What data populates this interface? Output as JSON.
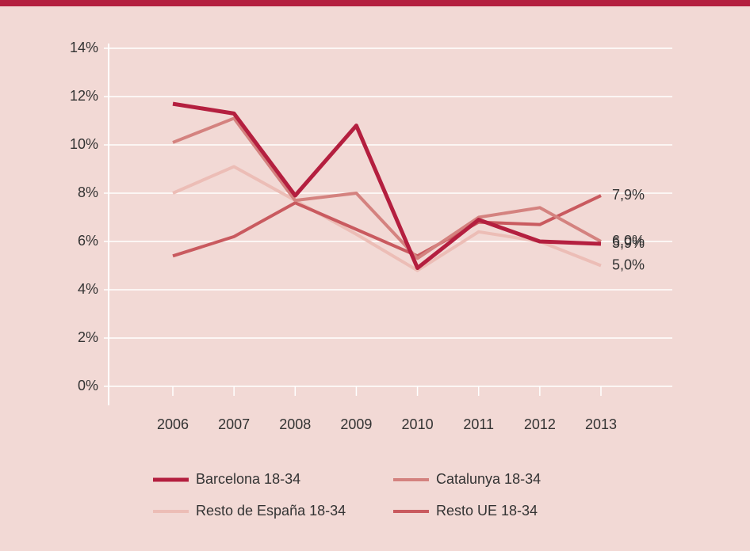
{
  "chart_data": {
    "type": "line",
    "categories": [
      "2006",
      "2007",
      "2008",
      "2009",
      "2010",
      "2011",
      "2012",
      "2013"
    ],
    "series": [
      {
        "name": "Resto de España 18-34",
        "color": "#ecbdb6",
        "values": [
          8.0,
          9.1,
          7.7,
          6.3,
          4.8,
          6.4,
          6.0,
          5.0
        ],
        "value_labels": [
          null,
          null,
          null,
          null,
          null,
          null,
          null,
          "5,0%"
        ]
      },
      {
        "name": "Resto UE 18-34",
        "color": "#c95a5f",
        "values": [
          5.4,
          6.2,
          7.6,
          6.5,
          5.4,
          6.8,
          6.7,
          7.9
        ],
        "value_labels": [
          null,
          null,
          null,
          null,
          null,
          null,
          null,
          "7,9%"
        ]
      },
      {
        "name": "Catalunya 18-34",
        "color": "#d4827f",
        "values": [
          10.1,
          11.1,
          7.7,
          8.0,
          5.3,
          7.0,
          7.4,
          6.0
        ],
        "value_labels": [
          null,
          null,
          null,
          null,
          null,
          null,
          null,
          "6,0%"
        ]
      },
      {
        "name": "Barcelona 18-34",
        "color": "#b41f3f",
        "values": [
          11.7,
          11.3,
          7.9,
          10.8,
          4.9,
          6.9,
          6.0,
          5.9
        ],
        "value_labels": [
          null,
          null,
          null,
          null,
          null,
          null,
          null,
          "5,9%"
        ]
      }
    ],
    "ylim": [
      0,
      14
    ],
    "yticks": [
      {
        "value": 0,
        "label": "0%"
      },
      {
        "value": 2,
        "label": "2%"
      },
      {
        "value": 4,
        "label": "4%"
      },
      {
        "value": 6,
        "label": "6%"
      },
      {
        "value": 8,
        "label": "8%"
      },
      {
        "value": 10,
        "label": "10%"
      },
      {
        "value": 12,
        "label": "12%"
      },
      {
        "value": 14,
        "label": "14%"
      }
    ],
    "grid": true
  }
}
